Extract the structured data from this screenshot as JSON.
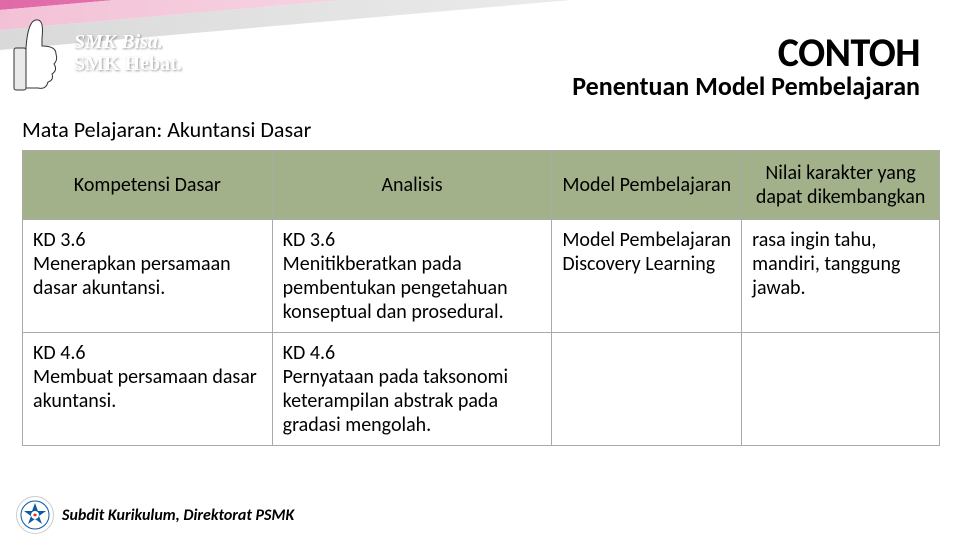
{
  "header": {
    "logo_line1": "SMK Bisa.",
    "logo_line2": "SMK Hebat.",
    "title": "CONTOH",
    "subtitle": "Penentuan Model Pembelajaran"
  },
  "subject_label": "Mata Pelajaran: Akuntansi Dasar",
  "table": {
    "columns": [
      "Kompetensi Dasar",
      "Analisis",
      "Model Pembelajaran",
      "Nilai karakter yang dapat dikembangkan"
    ],
    "header_bg": "#a3b18a",
    "border_color": "#aaaaaa",
    "rows": [
      {
        "c1": "KD 3.6\nMenerapkan persamaan dasar akuntansi.",
        "c2": "KD 3.6\nMenitikberatkan pada pembentukan pengetahuan konseptual dan prosedural.",
        "c3": "Model Pembelajaran Discovery Learning",
        "c4": "rasa ingin tahu, mandiri, tanggung jawab."
      },
      {
        "c1": "KD 4.6\nMembuat persamaan dasar akuntansi.",
        "c2": "KD 4.6\nPernyataan pada taksonomi keterampilan abstrak pada gradasi mengolah.",
        "c3": "",
        "c4": ""
      }
    ]
  },
  "footer": {
    "text": "Subdit Kurikulum, Direktorat PSMK"
  },
  "colors": {
    "stripe1": "#b73289",
    "stripe2": "#e06aa8",
    "stripe3": "#f3c1d6",
    "background": "#ffffff"
  }
}
